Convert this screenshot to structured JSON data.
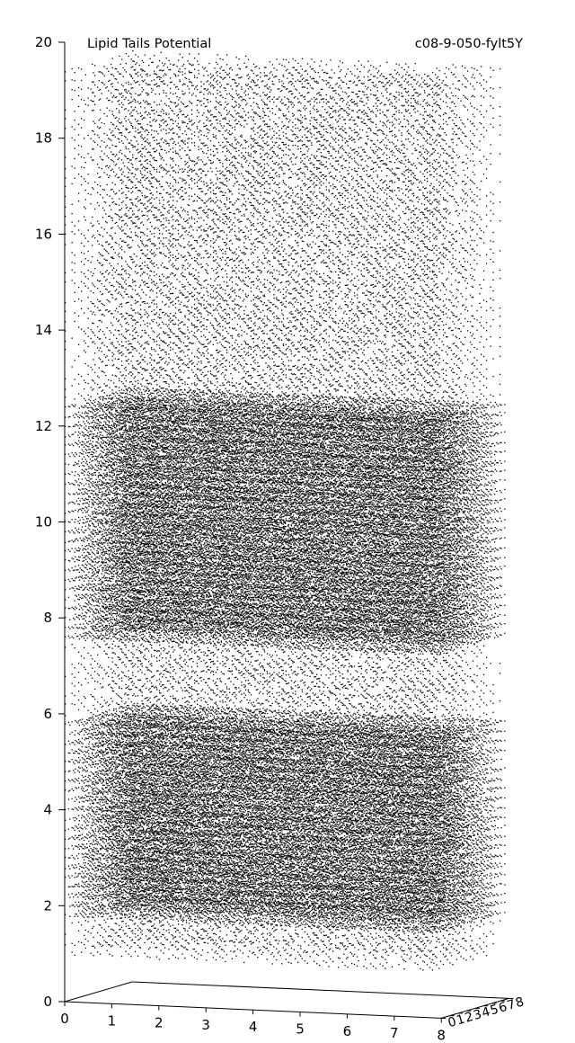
{
  "chart_data": {
    "type": "scatter",
    "projection": "3d",
    "title": "Lipid Tails Potential",
    "id_label": "c08-9-050-fylt5Y",
    "xlabel": "",
    "ylabel": "",
    "zlabel": "",
    "xlim": [
      0,
      8
    ],
    "ylim": [
      0,
      8
    ],
    "zlim": [
      0,
      20
    ],
    "x_ticks": [
      0,
      1,
      2,
      3,
      4,
      5,
      6,
      7,
      8
    ],
    "y_ticks": [
      0,
      1,
      2,
      3,
      4,
      5,
      6,
      7,
      8
    ],
    "z_ticks": [
      0,
      2,
      4,
      6,
      8,
      10,
      12,
      14,
      16,
      18,
      20
    ],
    "x_tick_labels": [
      "0",
      "1",
      "2",
      "3",
      "4",
      "5",
      "6",
      "7",
      "8"
    ],
    "y_tick_labels": [
      "0",
      "1",
      "2",
      "3",
      "4",
      "5",
      "6",
      "7",
      "8"
    ],
    "z_tick_labels": [
      "0",
      "2",
      "4",
      "6",
      "8",
      "10",
      "12",
      "14",
      "16",
      "18",
      "20"
    ],
    "grid": false,
    "point_color": "#000000",
    "z_layer_spacing": 0.2,
    "xy_grid_step": 0.1,
    "dense_bands": [
      {
        "z_min": 7.6,
        "z_max": 12.4
      },
      {
        "z_min": 1.6,
        "z_max": 6.0
      }
    ]
  }
}
